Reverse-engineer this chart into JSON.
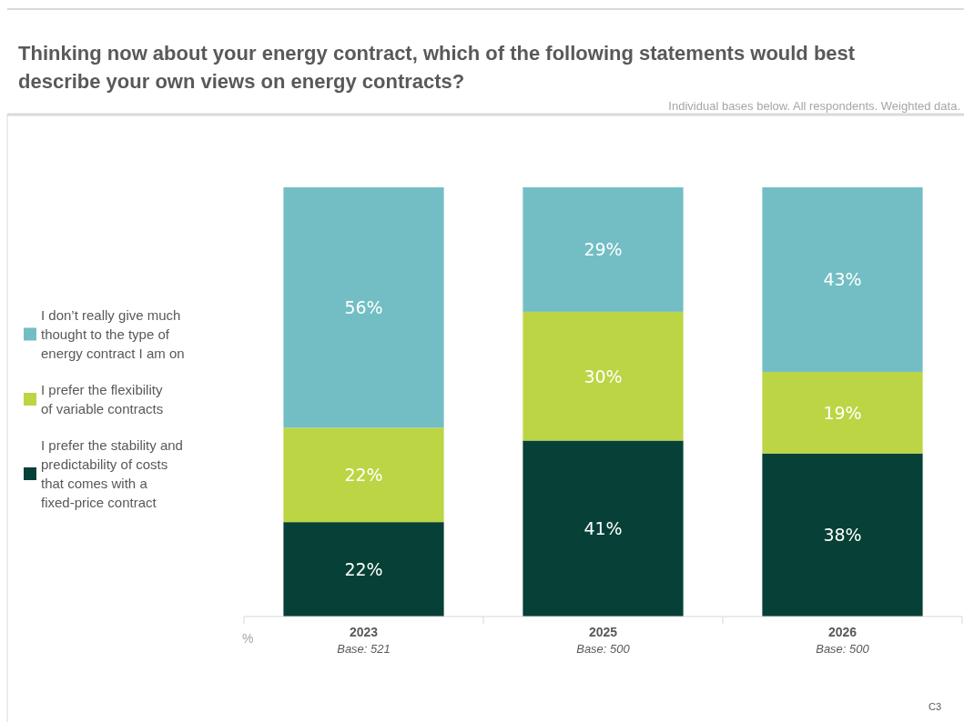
{
  "chart_data": {
    "type": "bar",
    "stacked": true,
    "title": "Thinking now about your energy contract, which of the following statements would best describe your own views on energy contracts?",
    "subtitle": "Individual bases below. All respondents. Weighted data.",
    "categories": [
      "2023\nBase: 521",
      "2025\nBase: 500",
      "2026\nBase: 500"
    ],
    "series": [
      {
        "name": "I prefer the stability and predictability of costs that comes with a fixed-price contract",
        "color": "#064036",
        "values": [
          22,
          41,
          38
        ],
        "value_labels": [
          "22%",
          "41%",
          "38%"
        ]
      },
      {
        "name": "I prefer the flexibility of variable contracts",
        "color": "#bcd544",
        "values": [
          22,
          30,
          19
        ],
        "value_labels": [
          "22%",
          "30%",
          "19%"
        ]
      },
      {
        "name": "I don’t really give much thought to the type of energy contract I am on",
        "color": "#73bec4",
        "values": [
          56,
          29,
          43
        ],
        "value_labels": [
          "56%",
          "29%",
          "43%"
        ]
      }
    ],
    "legend": "left",
    "annotations": [
      "C3",
      "%"
    ]
  }
}
